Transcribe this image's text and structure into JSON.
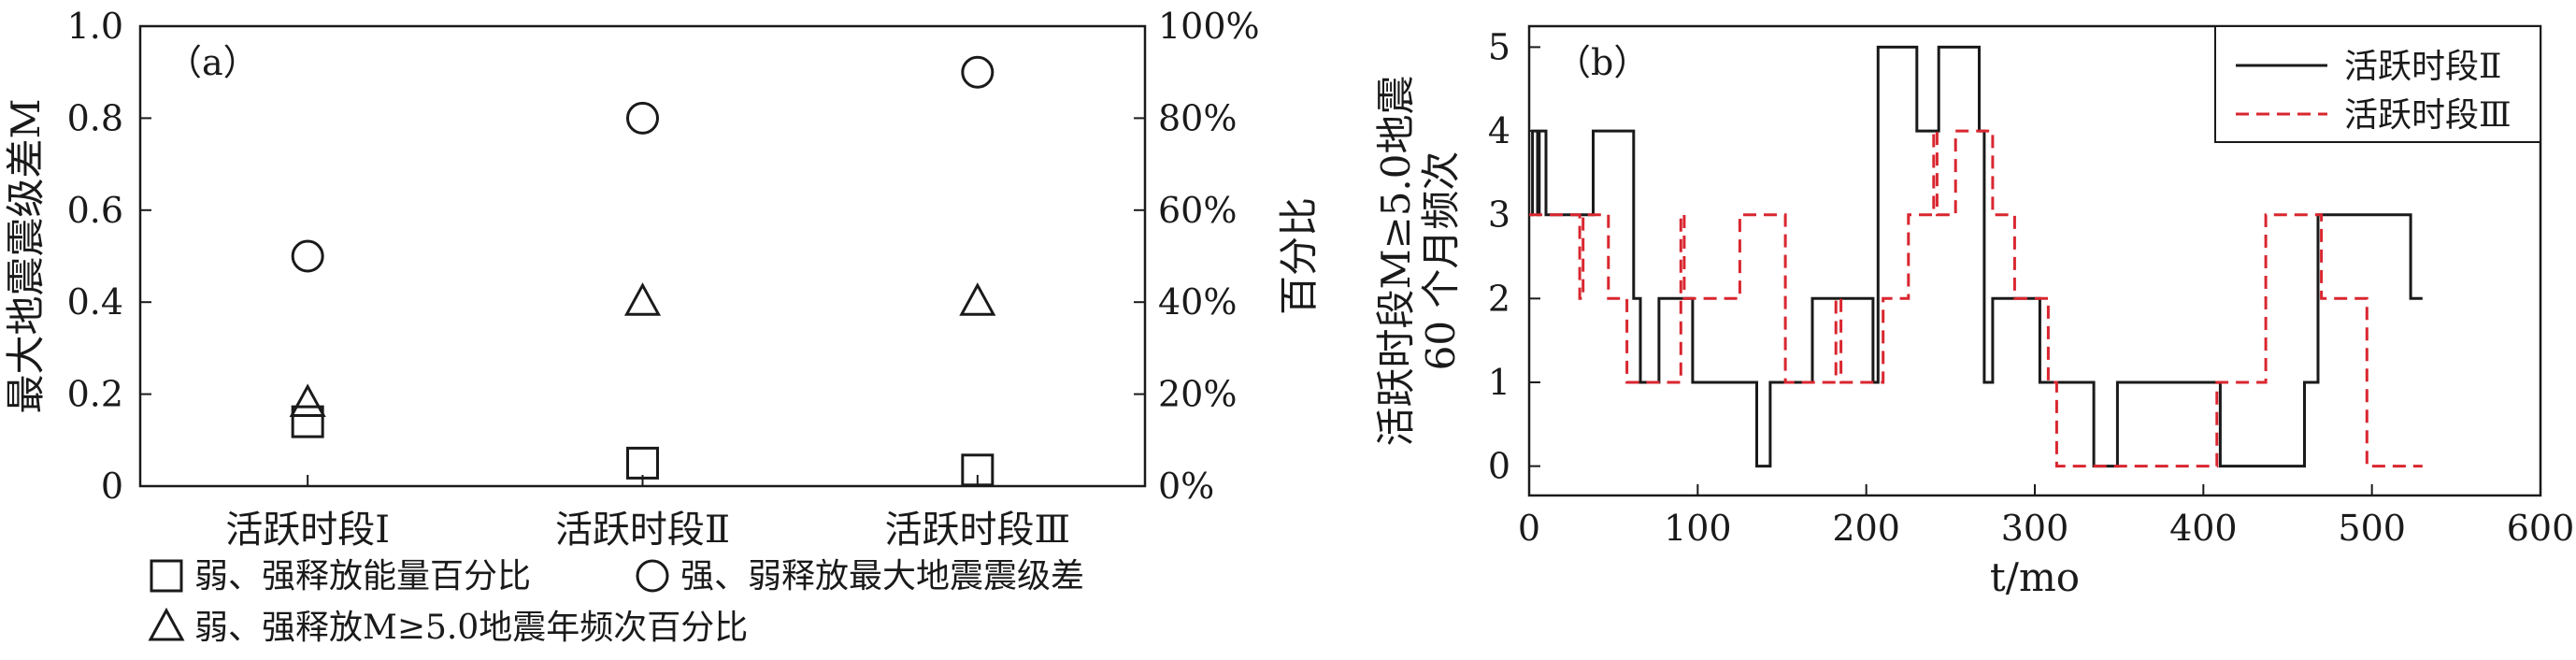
{
  "chart_data": [
    {
      "type": "scatter",
      "panel": "（a）",
      "categories": [
        "活跃时段Ⅰ",
        "活跃时段Ⅱ",
        "活跃时段Ⅲ"
      ],
      "ylabel": "最大地震震级差M",
      "ylabel_right": "百分比",
      "ylim": [
        0,
        1.0
      ],
      "ylim_right": [
        0,
        100
      ],
      "y_ticks": [
        "0",
        "0.2",
        "0.4",
        "0.6",
        "0.8",
        "1.0"
      ],
      "y_ticks_right": [
        "0%",
        "20%",
        "40%",
        "60%",
        "80%",
        "100%"
      ],
      "series": [
        {
          "name": "弱、强释放能量百分比",
          "marker": "square",
          "axis": "right",
          "values": [
            14,
            5,
            3.5
          ]
        },
        {
          "name": "强、弱释放最大地震震级差",
          "marker": "circle",
          "axis": "left",
          "values": [
            0.5,
            0.8,
            0.9
          ]
        },
        {
          "name": "弱、强释放M≥5.0地震年频次百分比",
          "marker": "triangle",
          "axis": "right",
          "values": [
            18,
            40,
            40
          ]
        }
      ],
      "legend_position": "bottom"
    },
    {
      "type": "line",
      "panel": "（b）",
      "xlabel": "t/mo",
      "ylabel": "活跃时段M≥5.0地震 60 个月频次",
      "xlim": [
        0,
        600
      ],
      "ylim": [
        -0.35,
        5.25
      ],
      "x_ticks": [
        "0",
        "100",
        "200",
        "300",
        "400",
        "500",
        "600"
      ],
      "y_ticks": [
        "0",
        "1",
        "2",
        "3",
        "4",
        "5"
      ],
      "legend_position": "top-right",
      "series": [
        {
          "name": "活跃时段Ⅱ",
          "color": "#1a1a1a",
          "dash": "solid",
          "points": [
            [
              0,
              3
            ],
            [
              2,
              3
            ],
            [
              2,
              4
            ],
            [
              5,
              4
            ],
            [
              5,
              3
            ],
            [
              6,
              3
            ],
            [
              6,
              4
            ],
            [
              10,
              4
            ],
            [
              10,
              3
            ],
            [
              38,
              3
            ],
            [
              38,
              4
            ],
            [
              62,
              4
            ],
            [
              62,
              2
            ],
            [
              66,
              2
            ],
            [
              66,
              1
            ],
            [
              77,
              1
            ],
            [
              77,
              2
            ],
            [
              97,
              2
            ],
            [
              97,
              1
            ],
            [
              135,
              1
            ],
            [
              135,
              0
            ],
            [
              143,
              0
            ],
            [
              143,
              1
            ],
            [
              168,
              1
            ],
            [
              168,
              2
            ],
            [
              204,
              2
            ],
            [
              204,
              1
            ],
            [
              207,
              1
            ],
            [
              207,
              5
            ],
            [
              230,
              5
            ],
            [
              230,
              4
            ],
            [
              243,
              4
            ],
            [
              243,
              5
            ],
            [
              267,
              5
            ],
            [
              267,
              4
            ],
            [
              270,
              4
            ],
            [
              270,
              1
            ],
            [
              275,
              1
            ],
            [
              275,
              2
            ],
            [
              303,
              2
            ],
            [
              303,
              1
            ],
            [
              335,
              1
            ],
            [
              335,
              0
            ],
            [
              349,
              0
            ],
            [
              349,
              1
            ],
            [
              410,
              1
            ],
            [
              410,
              0
            ],
            [
              460,
              0
            ],
            [
              460,
              1
            ],
            [
              468,
              1
            ],
            [
              468,
              3
            ],
            [
              523,
              3
            ],
            [
              523,
              2
            ],
            [
              530,
              2
            ]
          ]
        },
        {
          "name": "活跃时段Ⅲ",
          "color": "#d9262f",
          "dash": "dashed",
          "points": [
            [
              0,
              3
            ],
            [
              30,
              3
            ],
            [
              30,
              2
            ],
            [
              32,
              2
            ],
            [
              32,
              3
            ],
            [
              47,
              3
            ],
            [
              47,
              2
            ],
            [
              58,
              2
            ],
            [
              58,
              1
            ],
            [
              90,
              1
            ],
            [
              90,
              3
            ],
            [
              92,
              3
            ],
            [
              92,
              2
            ],
            [
              125,
              2
            ],
            [
              125,
              3
            ],
            [
              152,
              3
            ],
            [
              152,
              1
            ],
            [
              182,
              1
            ],
            [
              182,
              2
            ],
            [
              185,
              2
            ],
            [
              185,
              1
            ],
            [
              210,
              1
            ],
            [
              210,
              2
            ],
            [
              225,
              2
            ],
            [
              225,
              3
            ],
            [
              240,
              3
            ],
            [
              240,
              4
            ],
            [
              242,
              4
            ],
            [
              242,
              3
            ],
            [
              253,
              3
            ],
            [
              253,
              4
            ],
            [
              275,
              4
            ],
            [
              275,
              3
            ],
            [
              288,
              3
            ],
            [
              288,
              2
            ],
            [
              308,
              2
            ],
            [
              308,
              1
            ],
            [
              313,
              1
            ],
            [
              313,
              0
            ],
            [
              408,
              0
            ],
            [
              408,
              1
            ],
            [
              437,
              1
            ],
            [
              437,
              3
            ],
            [
              470,
              3
            ],
            [
              470,
              2
            ],
            [
              497,
              2
            ],
            [
              497,
              0
            ],
            [
              530,
              0
            ]
          ]
        }
      ]
    }
  ]
}
